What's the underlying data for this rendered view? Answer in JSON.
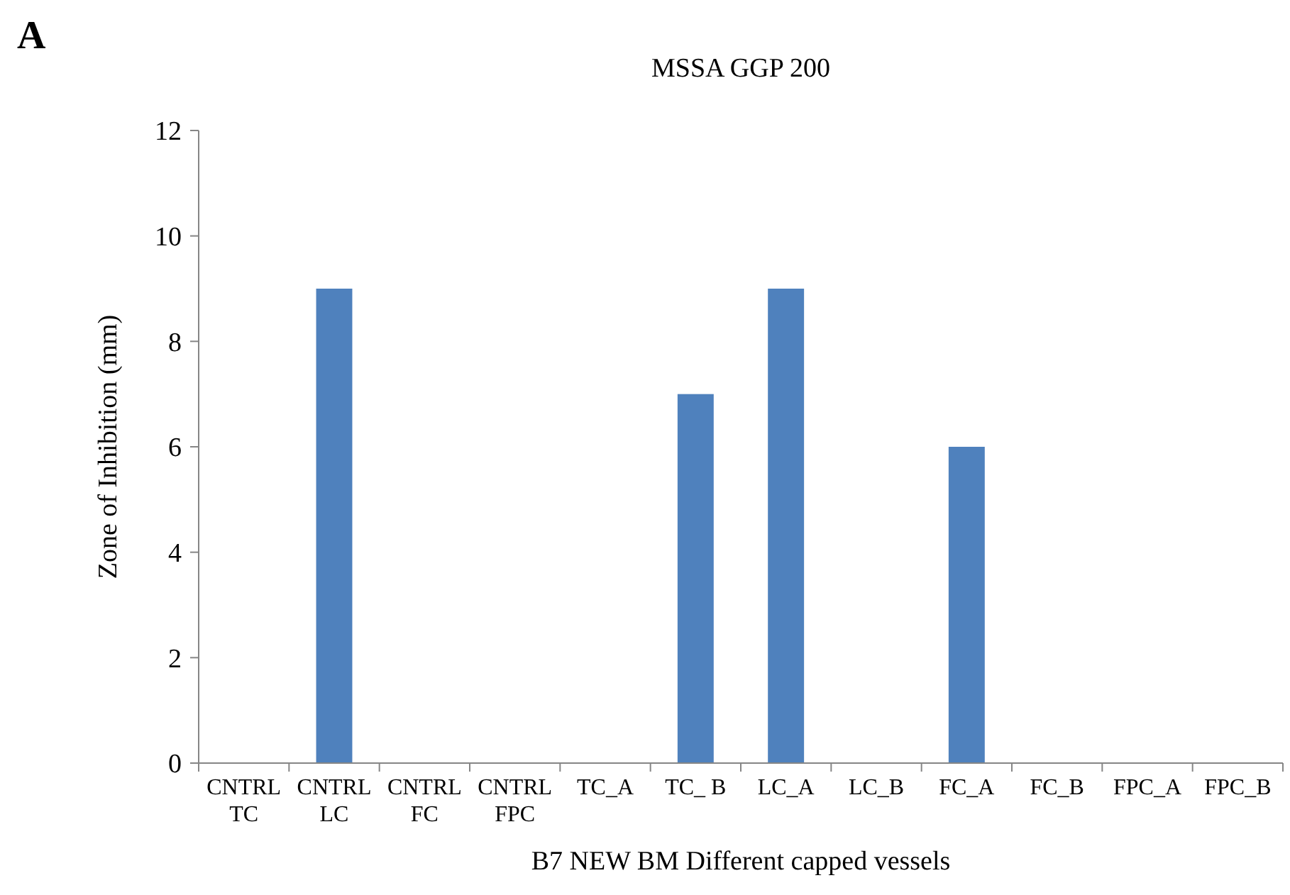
{
  "chart_data": {
    "type": "bar",
    "title": "MSSA GGP 200",
    "xlabel": "B7 NEW BM Different capped vessels",
    "ylabel": "Zone of Inhibition (mm)",
    "categories": [
      "CNTRL\nTC",
      "CNTRL\nLC",
      "CNTRL\nFC",
      "CNTRL\nFPC",
      "TC_A",
      "TC_ B",
      "LC_A",
      "LC_B",
      "FC_A",
      "FC_B",
      "FPC_A",
      "FPC_B"
    ],
    "values": [
      0,
      9,
      0,
      0,
      0,
      7,
      9,
      0,
      6,
      0,
      0,
      0
    ],
    "color": "#4f81bd",
    "ylim": [
      0,
      12
    ],
    "yticks": [
      0,
      2,
      4,
      6,
      8,
      10,
      12
    ],
    "grid": false,
    "annotations": [
      "A"
    ]
  }
}
